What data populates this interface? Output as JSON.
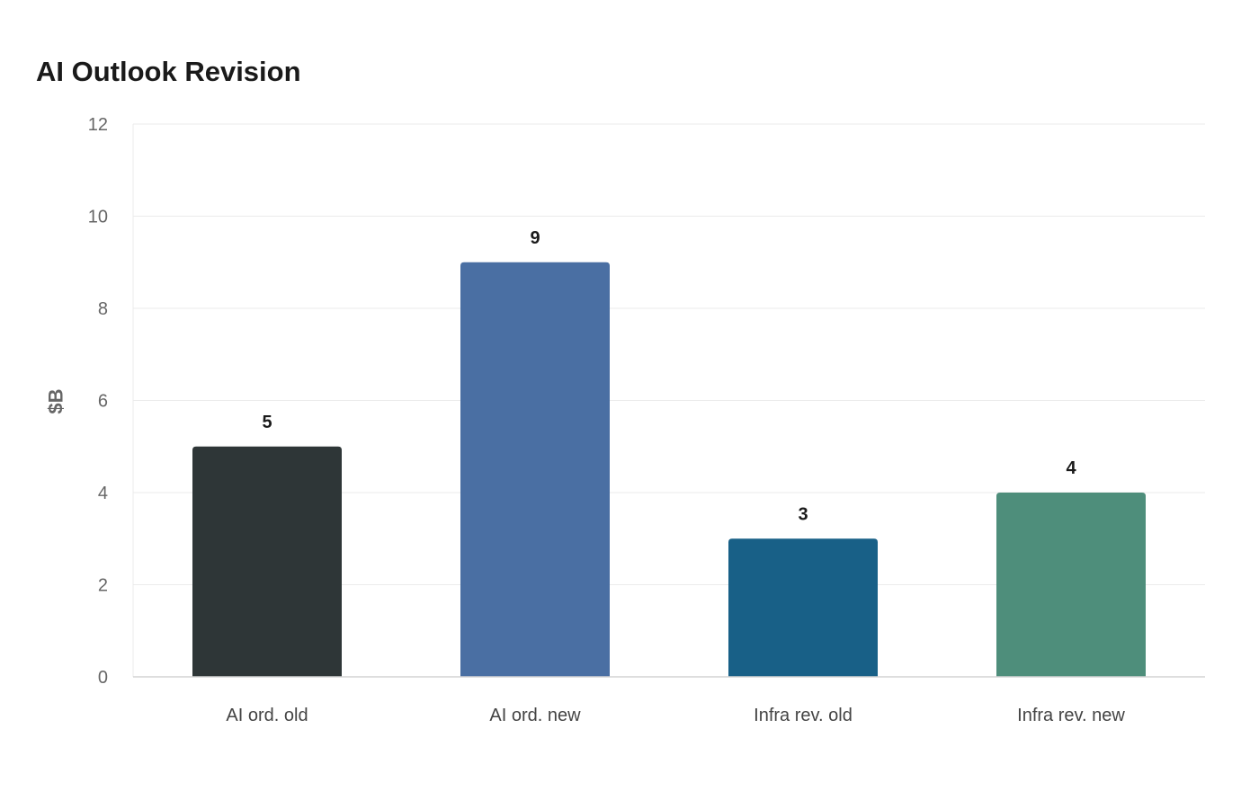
{
  "chart_data": {
    "type": "bar",
    "title": "AI Outlook Revision",
    "xlabel": "",
    "ylabel": "$B",
    "categories": [
      "AI ord. old",
      "AI ord. new",
      "Infra rev. old",
      "Infra rev. new"
    ],
    "values": [
      5,
      9,
      3,
      4
    ],
    "data_labels": [
      "5",
      "9",
      "3",
      "4"
    ],
    "colors": [
      "#2e3637",
      "#4a6fa3",
      "#186087",
      "#4e8e7b"
    ],
    "ylim": [
      0,
      12
    ],
    "yticks": [
      0,
      2,
      4,
      6,
      8,
      10,
      12
    ],
    "grid": true,
    "legend": "none"
  }
}
